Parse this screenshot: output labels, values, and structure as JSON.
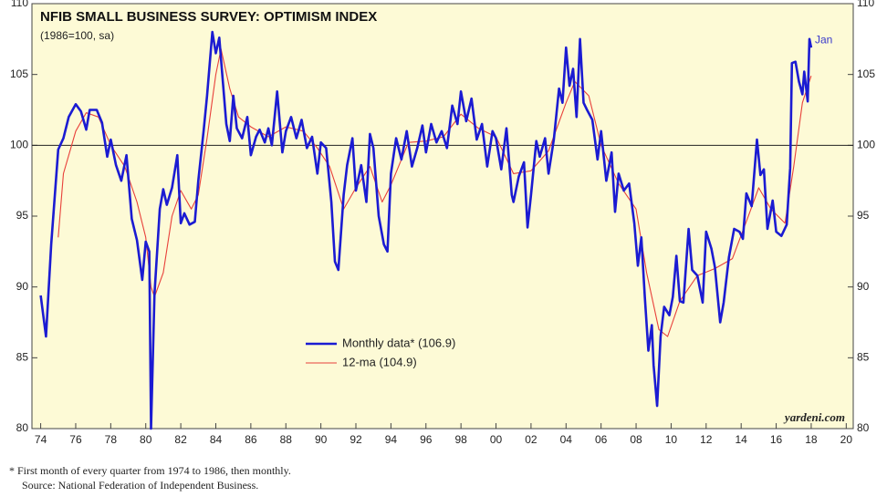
{
  "chart_data": {
    "type": "line",
    "title": "NFIB SMALL BUSINESS SURVEY: OPTIMISM INDEX",
    "subtitle": "(1986=100, sa)",
    "annotations": [
      "Jan",
      "yardeni.com"
    ],
    "footnotes": [
      "* First month of every quarter from 1974 to 1986, then monthly.",
      "Source: National Federation of Independent Business."
    ],
    "xlim": [
      1973.5,
      2020.4
    ],
    "xticks": [
      {
        "value": 1974,
        "label": "74"
      },
      {
        "value": 1976,
        "label": "76"
      },
      {
        "value": 1978,
        "label": "78"
      },
      {
        "value": 1980,
        "label": "80"
      },
      {
        "value": 1982,
        "label": "82"
      },
      {
        "value": 1984,
        "label": "84"
      },
      {
        "value": 1986,
        "label": "86"
      },
      {
        "value": 1988,
        "label": "88"
      },
      {
        "value": 1990,
        "label": "90"
      },
      {
        "value": 1992,
        "label": "92"
      },
      {
        "value": 1994,
        "label": "94"
      },
      {
        "value": 1996,
        "label": "96"
      },
      {
        "value": 1998,
        "label": "98"
      },
      {
        "value": 2000,
        "label": "00"
      },
      {
        "value": 2002,
        "label": "02"
      },
      {
        "value": 2004,
        "label": "04"
      },
      {
        "value": 2006,
        "label": "06"
      },
      {
        "value": 2008,
        "label": "08"
      },
      {
        "value": 2010,
        "label": "10"
      },
      {
        "value": 2012,
        "label": "12"
      },
      {
        "value": 2014,
        "label": "14"
      },
      {
        "value": 2016,
        "label": "16"
      },
      {
        "value": 2018,
        "label": "18"
      },
      {
        "value": 2020,
        "label": "20"
      }
    ],
    "ylim": [
      80,
      110
    ],
    "yticks": [
      80,
      85,
      90,
      95,
      100,
      105,
      110
    ],
    "y2lim": [
      80,
      110
    ],
    "y2ticks": [
      80,
      85,
      90,
      95,
      100,
      105,
      110
    ],
    "hline": 100,
    "legend": "center",
    "series": [
      {
        "name": "Monthly data* (106.9)",
        "color": "#1b1bd2",
        "x": [
          1974.0,
          1974.3,
          1974.6,
          1975.0,
          1975.3,
          1975.6,
          1976.0,
          1976.3,
          1976.6,
          1976.8,
          1977.2,
          1977.5,
          1977.8,
          1978.0,
          1978.3,
          1978.6,
          1978.9,
          1979.2,
          1979.5,
          1979.8,
          1980.0,
          1980.2,
          1980.3,
          1980.5,
          1980.8,
          1981.0,
          1981.2,
          1981.5,
          1981.8,
          1982.0,
          1982.2,
          1982.5,
          1982.8,
          1983.0,
          1983.3,
          1983.5,
          1983.8,
          1984.0,
          1984.2,
          1984.4,
          1984.6,
          1984.8,
          1985.0,
          1985.2,
          1985.5,
          1985.8,
          1986.0,
          1986.3,
          1986.5,
          1986.8,
          1987.0,
          1987.2,
          1987.5,
          1987.8,
          1988.0,
          1988.3,
          1988.6,
          1988.9,
          1989.2,
          1989.5,
          1989.8,
          1990.0,
          1990.3,
          1990.6,
          1990.8,
          1991.0,
          1991.3,
          1991.5,
          1991.8,
          1992.0,
          1992.3,
          1992.6,
          1992.8,
          1993.0,
          1993.3,
          1993.6,
          1993.8,
          1994.0,
          1994.3,
          1994.6,
          1994.9,
          1995.2,
          1995.5,
          1995.8,
          1996.0,
          1996.3,
          1996.6,
          1996.9,
          1997.2,
          1997.5,
          1997.8,
          1998.0,
          1998.3,
          1998.6,
          1998.9,
          1999.2,
          1999.5,
          1999.8,
          2000.0,
          2000.3,
          2000.6,
          2000.9,
          2001.0,
          2001.3,
          2001.6,
          2001.8,
          2002.0,
          2002.3,
          2002.5,
          2002.8,
          2003.0,
          2003.3,
          2003.6,
          2003.8,
          2004.0,
          2004.2,
          2004.4,
          2004.6,
          2004.8,
          2005.0,
          2005.2,
          2005.5,
          2005.8,
          2006.0,
          2006.3,
          2006.6,
          2006.8,
          2007.0,
          2007.3,
          2007.6,
          2007.9,
          2008.1,
          2008.3,
          2008.5,
          2008.7,
          2008.9,
          2009.0,
          2009.2,
          2009.4,
          2009.6,
          2009.9,
          2010.1,
          2010.3,
          2010.5,
          2010.7,
          2011.0,
          2011.2,
          2011.5,
          2011.8,
          2012.0,
          2012.3,
          2012.5,
          2012.8,
          2013.0,
          2013.3,
          2013.6,
          2013.9,
          2014.1,
          2014.3,
          2014.6,
          2014.9,
          2015.1,
          2015.3,
          2015.5,
          2015.8,
          2016.0,
          2016.3,
          2016.6,
          2016.8,
          2016.9,
          2017.1,
          2017.3,
          2017.5,
          2017.6,
          2017.8,
          2017.9,
          2018.0
        ],
        "values": [
          89.4,
          86.5,
          93,
          99.7,
          100.5,
          102,
          102.9,
          102.4,
          101.1,
          102.5,
          102.5,
          101.6,
          99.2,
          100.4,
          98.6,
          97.5,
          99.3,
          94.8,
          93.3,
          90.5,
          93.2,
          92.5,
          80,
          89.5,
          95.5,
          96.9,
          95.8,
          97,
          99.3,
          94.5,
          95.2,
          94.4,
          94.6,
          97.5,
          101,
          103.5,
          108,
          106.5,
          107.6,
          104.5,
          101.5,
          100.3,
          103.5,
          101.2,
          100.5,
          102,
          99.3,
          100.6,
          101.1,
          100.2,
          101.2,
          100,
          103.8,
          99.5,
          101,
          102,
          100.5,
          101.8,
          99.8,
          100.6,
          98,
          100.2,
          99.8,
          96,
          91.8,
          91.2,
          96.5,
          98.6,
          100.5,
          96.8,
          98.6,
          96,
          100.8,
          99.8,
          95,
          93,
          92.5,
          98,
          100.5,
          99,
          101,
          98.5,
          99.8,
          101.4,
          99.5,
          101.5,
          100.2,
          101,
          99.8,
          102.8,
          101.5,
          103.8,
          101.7,
          103.3,
          100.4,
          101.5,
          98.5,
          101,
          100.5,
          98.3,
          101.2,
          96.5,
          96,
          97.8,
          98.8,
          94.2,
          96.5,
          100.3,
          99.2,
          100.5,
          98,
          100.4,
          104,
          103,
          106.9,
          104.2,
          105.4,
          102,
          107.5,
          103,
          102.5,
          101.8,
          99,
          101,
          97.5,
          99.5,
          95.3,
          98,
          96.8,
          97.3,
          94.5,
          91.5,
          93.5,
          89.3,
          85.5,
          87.3,
          84.5,
          81.6,
          86.5,
          88.6,
          88,
          89.3,
          92.2,
          89,
          88.9,
          94.1,
          91.2,
          90.8,
          88.9,
          93.9,
          92.7,
          91.4,
          87.5,
          88.9,
          92.1,
          94.1,
          93.9,
          93.4,
          96.6,
          95.7,
          100.4,
          97.9,
          98.3,
          94.1,
          96.1,
          93.9,
          93.6,
          94.4,
          98.4,
          105.8,
          105.9,
          104.5,
          103.6,
          105.2,
          103.1,
          107.5,
          106.9
        ]
      },
      {
        "name": "12-ma (104.9)",
        "color": "#e8403a",
        "x": [
          1975.0,
          1975.3,
          1976.0,
          1976.6,
          1977.3,
          1978.0,
          1978.8,
          1979.5,
          1980.0,
          1980.3,
          1980.5,
          1981.0,
          1981.5,
          1982.0,
          1982.6,
          1983.0,
          1983.5,
          1984.0,
          1984.3,
          1984.8,
          1985.3,
          1986.0,
          1987.0,
          1988.0,
          1989.0,
          1989.8,
          1990.5,
          1991.3,
          1992.0,
          1992.8,
          1993.5,
          1994.0,
          1995.0,
          1996.0,
          1997.0,
          1998.0,
          1999.0,
          2000.0,
          2001.0,
          2002.0,
          2003.0,
          2004.0,
          2004.5,
          2005.3,
          2006.0,
          2007.0,
          2008.0,
          2008.6,
          2009.3,
          2009.8,
          2010.5,
          2011.5,
          2012.5,
          2013.5,
          2014.5,
          2015.0,
          2015.7,
          2016.5,
          2017.0,
          2017.5,
          2018.0
        ],
        "values": [
          93.5,
          98,
          101,
          102.3,
          102,
          100,
          98.5,
          96,
          93.5,
          90,
          89.3,
          91,
          95,
          96.8,
          95.5,
          96.5,
          100.5,
          105,
          106.8,
          104,
          102,
          101.3,
          100.6,
          101.3,
          101,
          99.8,
          98.5,
          95.5,
          97,
          98.5,
          96,
          97.2,
          100.2,
          100.3,
          100.6,
          102.2,
          101.2,
          100.6,
          98,
          98.2,
          99.6,
          103,
          104.5,
          103.5,
          100,
          97.3,
          95.5,
          91,
          87,
          86.5,
          89,
          90.8,
          91.3,
          92,
          95.3,
          97,
          95.5,
          94.5,
          98.5,
          103,
          104.9
        ]
      }
    ]
  }
}
